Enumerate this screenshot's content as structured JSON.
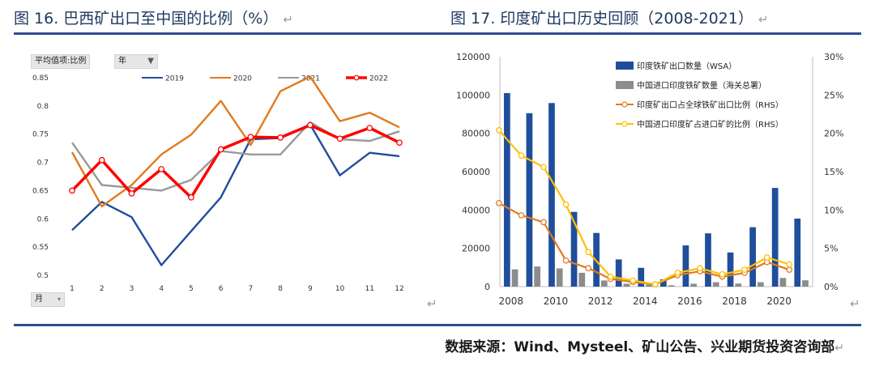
{
  "titles": {
    "left": "图 16. 巴西矿出口至中国的比例（%）",
    "right": "图 17. 印度矿出口历史回顾（2008-2021）"
  },
  "left_controls": {
    "field_button": "平均值项:比例",
    "year_button": "年",
    "month_button": "月"
  },
  "source": "数据来源：Wind、Mysteel、矿山公告、兴业期货投资咨询部",
  "colors": {
    "y2019": "#1f4e9c",
    "y2020": "#e07b1e",
    "y2021": "#999999",
    "y2022": "#ff0000",
    "bar_wsa": "#1f4e9c",
    "bar_customs": "#8c8c8c",
    "line_global": "#e07b1e",
    "line_china": "#ffc000",
    "rule": "#2e4e8f"
  },
  "chart_data": [
    {
      "type": "line",
      "title": "巴西矿出口至中国的比例（%）",
      "x": [
        "1",
        "2",
        "3",
        "4",
        "5",
        "6",
        "7",
        "8",
        "9",
        "10",
        "11",
        "12"
      ],
      "ylim": [
        0.5,
        0.85
      ],
      "yticks": [
        "0.5",
        "0.55",
        "0.6",
        "0.65",
        "0.7",
        "0.75",
        "0.8",
        "0.85"
      ],
      "series": [
        {
          "name": "2019",
          "values": [
            0.58,
            0.63,
            0.603,
            0.518,
            0.578,
            0.638,
            0.741,
            0.743,
            0.767,
            0.677,
            0.717,
            0.711
          ]
        },
        {
          "name": "2020",
          "values": [
            0.718,
            0.622,
            0.66,
            0.714,
            0.749,
            0.809,
            0.731,
            0.826,
            0.852,
            0.773,
            0.788,
            0.762
          ]
        },
        {
          "name": "2021",
          "values": [
            0.735,
            0.66,
            0.655,
            0.65,
            0.669,
            0.72,
            0.714,
            0.714,
            0.771,
            0.741,
            0.738,
            0.755
          ]
        },
        {
          "name": "2022",
          "values": [
            0.65,
            0.704,
            0.645,
            0.688,
            0.638,
            0.723,
            0.745,
            0.744,
            0.766,
            0.742,
            0.761,
            0.735
          ]
        }
      ]
    },
    {
      "type": "bar",
      "title": "印度矿出口历史回顾（2008-2021）",
      "categories": [
        "2008",
        "2009",
        "2010",
        "2011",
        "2012",
        "2013",
        "2014",
        "2015",
        "2016",
        "2017",
        "2018",
        "2019",
        "2020",
        "2021"
      ],
      "x_tick_labels": [
        "2008",
        "2010",
        "2012",
        "2014",
        "2016",
        "2018",
        "2020"
      ],
      "ylim": [
        0,
        120000
      ],
      "yticks": [
        "0",
        "20000",
        "40000",
        "60000",
        "80000",
        "100000",
        "120000"
      ],
      "y2lim": [
        0,
        30
      ],
      "y2ticks": [
        "0%",
        "5%",
        "10%",
        "15%",
        "20%",
        "25%",
        "30%"
      ],
      "series": [
        {
          "name": "印度铁矿出口数量（WSA）",
          "type": "bar",
          "axis": "left",
          "values": [
            101000,
            90500,
            95800,
            39000,
            28000,
            14200,
            9800,
            3800,
            21500,
            27800,
            17800,
            31000,
            51500,
            35500
          ]
        },
        {
          "name": "中国进口印度铁矿数量（海关总署）",
          "type": "bar",
          "axis": "left",
          "values": [
            9000,
            10500,
            9500,
            7200,
            3200,
            1500,
            1100,
            700,
            1500,
            2300,
            1600,
            2300,
            4500,
            3300
          ]
        },
        {
          "name": "印度矿出口占全球铁矿出口比例（RHS）",
          "type": "line",
          "axis": "right",
          "values": [
            10.9,
            9.3,
            8.4,
            3.4,
            2.4,
            1.0,
            0.6,
            0.3,
            1.5,
            2.0,
            1.3,
            1.8,
            3.2,
            2.2
          ]
        },
        {
          "name": "中国进口印度矿占进口矿的比例（RHS）",
          "type": "line",
          "axis": "right",
          "values": [
            20.4,
            17.1,
            15.6,
            10.7,
            4.5,
            1.3,
            0.8,
            0.3,
            1.8,
            2.4,
            1.6,
            2.2,
            3.8,
            2.9
          ]
        }
      ]
    }
  ]
}
